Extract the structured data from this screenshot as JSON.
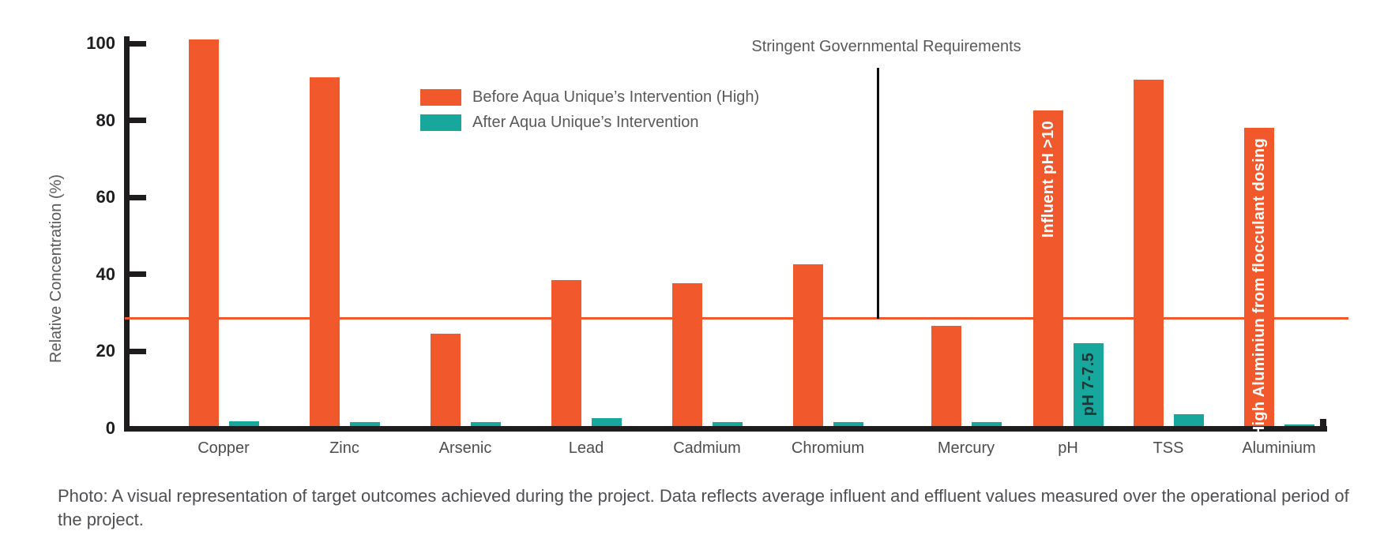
{
  "chart_data": {
    "type": "bar",
    "title": "",
    "xlabel": "",
    "ylabel": "Relative Concentration (%)",
    "ylim": [
      0,
      100
    ],
    "yticks": [
      0,
      20,
      40,
      60,
      80,
      100
    ],
    "grid": false,
    "legend_position": "upper-left-inside-plot",
    "categories": [
      "Copper",
      "Zinc",
      "Arsenic",
      "Lead",
      "Cadmium",
      "Chromium",
      "Mercury",
      "pH",
      "TSS",
      "Aluminium"
    ],
    "series": [
      {
        "name": "Before Aqua Unique’s Intervention (High)",
        "color": "#F1582B",
        "values": [
          100.5,
          90.5,
          24,
          38,
          37,
          42,
          26,
          82,
          90,
          77.5
        ]
      },
      {
        "name": "After Aqua Unique’s Intervention",
        "color": "#17A79D",
        "values": [
          1.2,
          1,
          1,
          2,
          1,
          1,
          1,
          21.5,
          3,
          0.5
        ]
      }
    ],
    "threshold_line": {
      "value": 28.5,
      "color": "#F1582B"
    },
    "reference_marker": {
      "label": "Stringent Governmental Requirements",
      "position": "between Chromium and Mercury, from top down to threshold line",
      "color": "#0C0C0C"
    },
    "bar_annotations": [
      {
        "category": "pH",
        "series_index": 0,
        "text": "Influent pH >10",
        "color": "#FFFFFF"
      },
      {
        "category": "pH",
        "series_index": 1,
        "text": "pH 7-7.5",
        "color": "#1C3836"
      },
      {
        "category": "Aluminium",
        "series_index": 0,
        "text": "High Aluminiun from flocculant dosing",
        "color": "#FFFFFF"
      }
    ]
  },
  "caption": "Photo: A visual representation of target outcomes achieved during the project. Data reflects average influent and effluent values measured over the operational period of the project."
}
